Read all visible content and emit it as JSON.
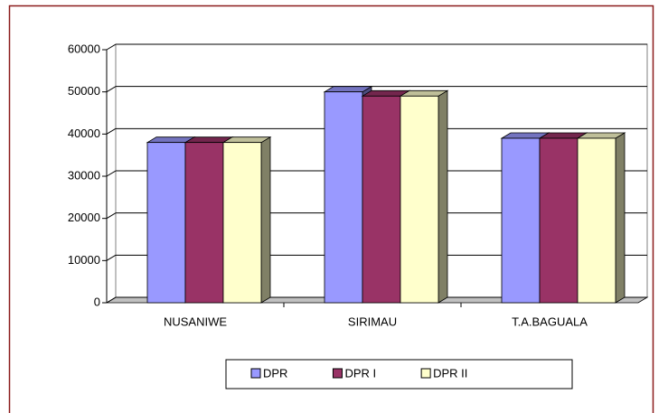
{
  "chart_data": {
    "type": "bar3d",
    "categories": [
      "NUSANIWE",
      "SIRIMAU",
      "T.A.BAGUALA"
    ],
    "series": [
      {
        "name": "DPR",
        "color": "#9999ff",
        "values": [
          38000,
          50000,
          39000
        ]
      },
      {
        "name": "DPR I",
        "color": "#993366",
        "values": [
          38000,
          49000,
          39000
        ]
      },
      {
        "name": "DPR II",
        "color": "#ffffcc",
        "values": [
          38000,
          49000,
          39000
        ]
      }
    ],
    "ylim": [
      0,
      60000
    ],
    "yticks": [
      0,
      10000,
      20000,
      30000,
      40000,
      50000,
      60000
    ],
    "grid": true,
    "legend": "bottom"
  }
}
